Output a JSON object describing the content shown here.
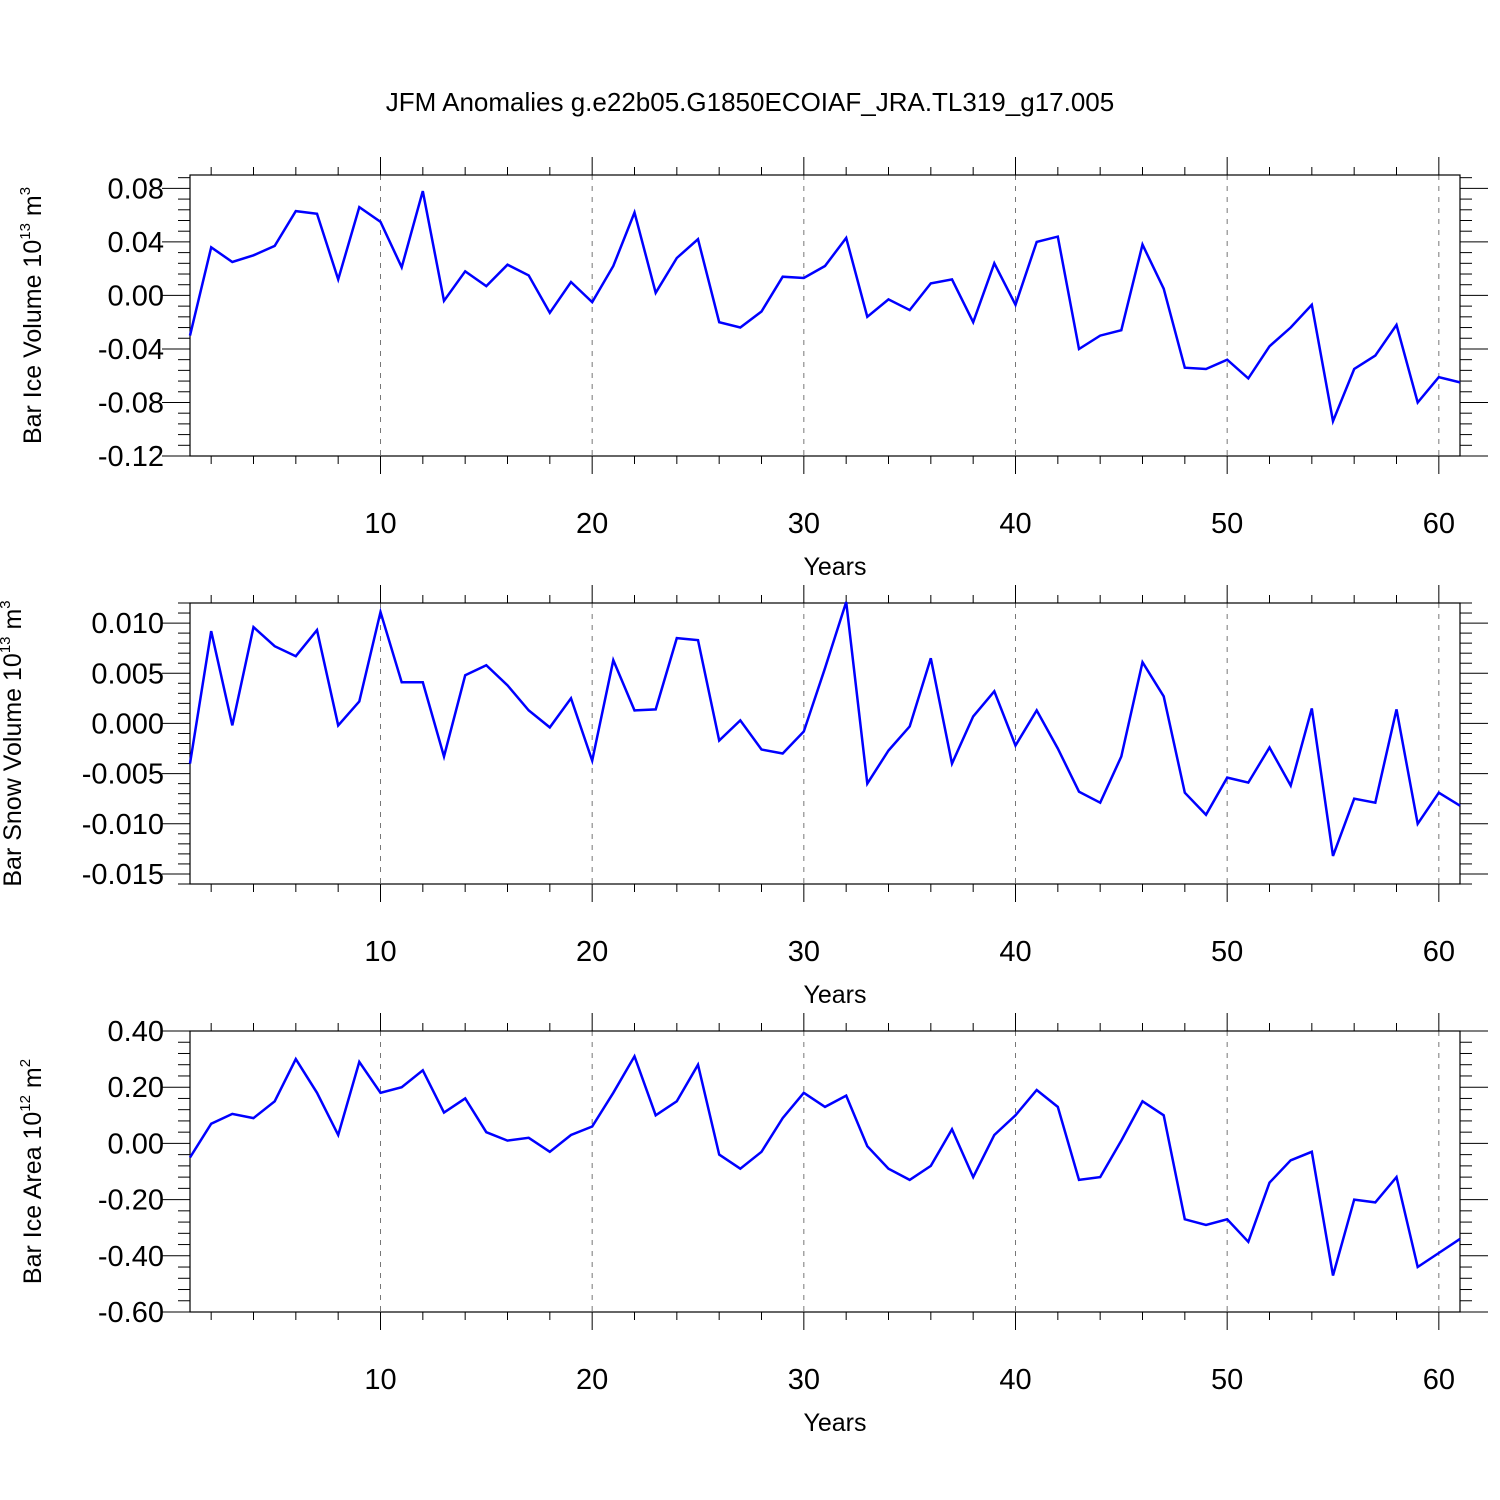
{
  "title": "JFM Anomalies g.e22b05.G1850ECOIAF_JRA.TL319_g17.005",
  "line_color": "#0000ff",
  "chart_data": [
    {
      "type": "line",
      "ylabel": "Bar Ice Volume 10",
      "ylabel_exp": "13",
      "ylabel_unit": "m",
      "ylabel_unit_exp": "3",
      "xlabel": "Years",
      "xlim": [
        1,
        61
      ],
      "ylim": [
        -0.12,
        0.09
      ],
      "yticks": [
        -0.12,
        -0.08,
        -0.04,
        0.0,
        0.04,
        0.08
      ],
      "ytick_labels": [
        "-0.12",
        "-0.08",
        "-0.04",
        "0.00",
        "0.04",
        "0.08"
      ],
      "xticks": [
        10,
        20,
        30,
        40,
        50,
        60
      ],
      "xtick_labels": [
        "10",
        "20",
        "30",
        "40",
        "50",
        "60"
      ],
      "grid": "vertical dashed at labeled x ticks",
      "series": [
        {
          "values": [
            -0.03,
            0.036,
            0.025,
            0.03,
            0.037,
            0.063,
            0.061,
            0.012,
            0.066,
            0.055,
            0.021,
            0.078,
            -0.004,
            0.018,
            0.007,
            0.023,
            0.015,
            -0.013,
            0.01,
            -0.005,
            0.022,
            0.062,
            0.002,
            0.028,
            0.042,
            -0.02,
            -0.024,
            -0.012,
            0.014,
            0.013,
            0.022,
            0.043,
            -0.016,
            -0.003,
            -0.011,
            0.009,
            0.012,
            -0.02,
            0.024,
            -0.007,
            0.04,
            0.044,
            -0.04,
            -0.03,
            -0.026,
            0.038,
            0.005,
            -0.054,
            -0.055,
            -0.048,
            -0.062,
            -0.038,
            -0.024,
            -0.007,
            -0.094,
            -0.055,
            -0.045,
            -0.022,
            -0.08,
            -0.061,
            -0.065
          ]
        }
      ]
    },
    {
      "type": "line",
      "ylabel": "Bar Snow Volume 10",
      "ylabel_exp": "13",
      "ylabel_unit": "m",
      "ylabel_unit_exp": "3",
      "xlabel": "Years",
      "xlim": [
        1,
        61
      ],
      "ylim": [
        -0.016,
        0.012
      ],
      "yticks": [
        -0.015,
        -0.01,
        -0.005,
        0.0,
        0.005,
        0.01
      ],
      "ytick_labels": [
        "-0.015",
        "-0.010",
        "-0.005",
        "0.000",
        "0.005",
        "0.010"
      ],
      "xticks": [
        10,
        20,
        30,
        40,
        50,
        60
      ],
      "xtick_labels": [
        "10",
        "20",
        "30",
        "40",
        "50",
        "60"
      ],
      "grid": "vertical dashed at labeled x ticks",
      "series": [
        {
          "values": [
            -0.004,
            0.0092,
            -0.0002,
            0.0096,
            0.0077,
            0.0067,
            0.0093,
            -0.0002,
            0.0022,
            0.0111,
            0.0041,
            0.0041,
            -0.0033,
            0.0048,
            0.0058,
            0.0038,
            0.0013,
            -0.0004,
            0.0025,
            -0.0037,
            0.0063,
            0.0013,
            0.0014,
            0.0085,
            0.0083,
            -0.0017,
            0.0003,
            -0.0026,
            -0.003,
            -0.0008,
            0.0055,
            0.0121,
            -0.006,
            -0.0027,
            -0.0003,
            0.0065,
            -0.004,
            0.0007,
            0.0032,
            -0.0022,
            0.0013,
            -0.0025,
            -0.0068,
            -0.0079,
            -0.0033,
            0.0061,
            0.0027,
            -0.0069,
            -0.0091,
            -0.0054,
            -0.0059,
            -0.0024,
            -0.0062,
            0.0015,
            -0.0132,
            -0.0075,
            -0.0079,
            0.0014,
            -0.01,
            -0.0069,
            -0.0082
          ]
        }
      ]
    },
    {
      "type": "line",
      "ylabel": "Bar Ice Area 10",
      "ylabel_exp": "12",
      "ylabel_unit": "m",
      "ylabel_unit_exp": "2",
      "xlabel": "Years",
      "xlim": [
        1,
        61
      ],
      "ylim": [
        -0.6,
        0.4
      ],
      "yticks": [
        -0.6,
        -0.4,
        -0.2,
        0.0,
        0.2,
        0.4
      ],
      "ytick_labels": [
        "-0.60",
        "-0.40",
        "-0.20",
        "0.00",
        "0.20",
        "0.40"
      ],
      "xticks": [
        10,
        20,
        30,
        40,
        50,
        60
      ],
      "xtick_labels": [
        "10",
        "20",
        "30",
        "40",
        "50",
        "60"
      ],
      "grid": "vertical dashed at labeled x ticks",
      "series": [
        {
          "values": [
            -0.05,
            0.07,
            0.105,
            0.09,
            0.15,
            0.3,
            0.18,
            0.03,
            0.29,
            0.18,
            0.2,
            0.26,
            0.11,
            0.16,
            0.04,
            0.01,
            0.02,
            -0.03,
            0.03,
            0.06,
            0.18,
            0.31,
            0.1,
            0.15,
            0.28,
            -0.04,
            -0.09,
            -0.03,
            0.09,
            0.18,
            0.13,
            0.17,
            -0.01,
            -0.09,
            -0.13,
            -0.08,
            0.05,
            -0.12,
            0.03,
            0.1,
            0.19,
            0.13,
            -0.13,
            -0.12,
            0.01,
            0.15,
            0.1,
            -0.27,
            -0.29,
            -0.27,
            -0.35,
            -0.14,
            -0.06,
            -0.03,
            -0.47,
            -0.2,
            -0.21,
            -0.12,
            -0.44,
            -0.39,
            -0.34
          ]
        }
      ]
    }
  ]
}
